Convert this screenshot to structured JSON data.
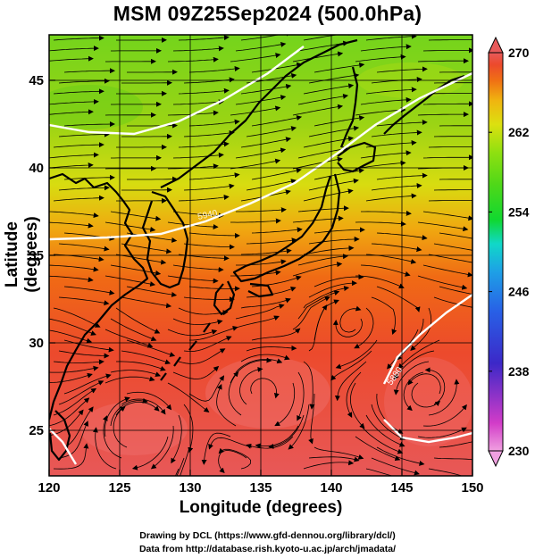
{
  "title": "MSM 09Z25Sep2024 (500.0hPa)",
  "xlabel": "Longitude (degrees)",
  "ylabel": "Latitude  (degrees)",
  "credit_line1": "Drawing by DCL (https://www.gfd-dennou.org/library/dcl/)",
  "credit_line2": "Data from http://database.rish.kyoto-u.ac.jp/arch/jmadata/",
  "xticks": [
    120,
    125,
    130,
    135,
    140,
    145,
    150
  ],
  "yticks": [
    25,
    30,
    35,
    40,
    45
  ],
  "xlim": [
    120,
    150
  ],
  "ylim": [
    22.4,
    47.6
  ],
  "colorbar": {
    "min": 230,
    "max": 270,
    "ticks": [
      270,
      262,
      254,
      246,
      238,
      230
    ],
    "colors": [
      "#f0a0e0",
      "#d23cc8",
      "#3c28c8",
      "#2860e6",
      "#1ea0e6",
      "#10d8c8",
      "#10d830",
      "#50d818",
      "#90e010",
      "#dce010",
      "#f0b410",
      "#f07014",
      "#ec4a2c",
      "#e85a5a"
    ]
  },
  "contour_labels": [
    "5880",
    "5940"
  ],
  "colors": {
    "land_outline": "#000000",
    "contour": "#ffffff",
    "arrow": "#000000"
  }
}
